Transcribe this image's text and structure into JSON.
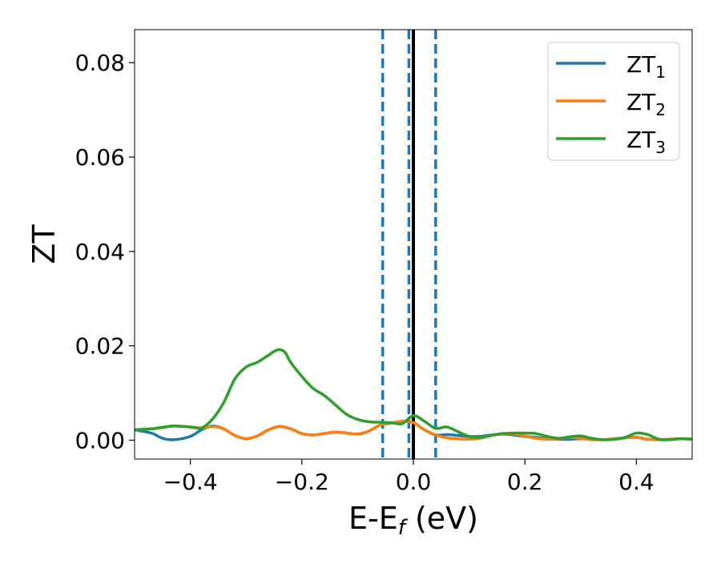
{
  "chart_data": {
    "type": "line",
    "title": "",
    "xlabel_main": "E-E",
    "xlabel_sub": "f",
    "xlabel_tail": " (eV)",
    "ylabel": "ZT",
    "xlim": [
      -0.5,
      0.5
    ],
    "ylim": [
      -0.004,
      0.087
    ],
    "xticks": [
      -0.4,
      -0.2,
      0.0,
      0.2,
      0.4
    ],
    "xtick_labels": [
      "−0.4",
      "−0.2",
      "0.0",
      "0.2",
      "0.4"
    ],
    "yticks": [
      0.0,
      0.02,
      0.04,
      0.06,
      0.08
    ],
    "ytick_labels": [
      "0.00",
      "0.02",
      "0.04",
      "0.06",
      "0.08"
    ],
    "grid": false,
    "legend_position": "top-right",
    "vlines": [
      {
        "x": -0.055,
        "style": "dashed",
        "color": "#1f77b4"
      },
      {
        "x": -0.008,
        "style": "dashed",
        "color": "#1f77b4"
      },
      {
        "x": 0.0,
        "style": "solid",
        "color": "#000000"
      },
      {
        "x": 0.04,
        "style": "dashed",
        "color": "#1f77b4"
      }
    ],
    "series": [
      {
        "name": "ZT",
        "sub": "1",
        "color": "#1f77b4",
        "x": [
          -0.5,
          -0.47,
          -0.45,
          -0.43,
          -0.4,
          -0.38,
          -0.36,
          -0.34,
          -0.32,
          -0.3,
          -0.28,
          -0.26,
          -0.24,
          -0.22,
          -0.2,
          -0.18,
          -0.16,
          -0.14,
          -0.12,
          -0.1,
          -0.08,
          -0.06,
          -0.04,
          -0.02,
          0.0,
          0.02,
          0.04,
          0.06,
          0.08,
          0.1,
          0.12,
          0.14,
          0.16,
          0.18,
          0.2,
          0.22,
          0.24,
          0.26,
          0.28,
          0.3,
          0.32,
          0.34,
          0.36,
          0.38,
          0.4,
          0.42,
          0.44,
          0.46,
          0.48,
          0.5
        ],
        "values": [
          0.0022,
          0.0015,
          0.0004,
          0.0001,
          0.0008,
          0.0022,
          0.003,
          0.0024,
          0.001,
          0.0003,
          0.0009,
          0.0022,
          0.0029,
          0.0024,
          0.0014,
          0.0011,
          0.0014,
          0.0017,
          0.0015,
          0.0013,
          0.0019,
          0.0032,
          0.0036,
          0.004,
          0.0037,
          0.0022,
          0.0011,
          0.0012,
          0.001,
          0.0008,
          0.0008,
          0.0011,
          0.0013,
          0.0011,
          0.0008,
          0.0006,
          0.0003,
          0.0002,
          0.0002,
          0.0003,
          0.0002,
          0.0001,
          0.0002,
          0.0005,
          0.0006,
          0.0002,
          0.0001,
          0.0002,
          0.0003,
          0.0002
        ]
      },
      {
        "name": "ZT",
        "sub": "2",
        "color": "#ff7f0e",
        "x": [
          -0.5,
          -0.47,
          -0.45,
          -0.43,
          -0.4,
          -0.38,
          -0.36,
          -0.34,
          -0.32,
          -0.3,
          -0.28,
          -0.26,
          -0.24,
          -0.22,
          -0.2,
          -0.18,
          -0.16,
          -0.14,
          -0.12,
          -0.1,
          -0.08,
          -0.06,
          -0.04,
          -0.02,
          0.0,
          0.02,
          0.04,
          0.06,
          0.08,
          0.1,
          0.12,
          0.14,
          0.16,
          0.18,
          0.2,
          0.22,
          0.24,
          0.26,
          0.28,
          0.3,
          0.32,
          0.34,
          0.36,
          0.38,
          0.4,
          0.42,
          0.44,
          0.46,
          0.48,
          0.5
        ],
        "values": [
          0.0022,
          0.0024,
          0.0027,
          0.003,
          0.0028,
          0.0026,
          0.0029,
          0.0024,
          0.001,
          0.0003,
          0.0009,
          0.0022,
          0.0029,
          0.0024,
          0.0014,
          0.0011,
          0.0014,
          0.0017,
          0.0015,
          0.0013,
          0.0019,
          0.0032,
          0.0036,
          0.004,
          0.0037,
          0.0022,
          0.0011,
          0.0005,
          0.0003,
          0.0002,
          0.0004,
          0.001,
          0.0014,
          0.0013,
          0.0009,
          0.0004,
          0.0002,
          0.0003,
          0.0006,
          0.0004,
          0.0001,
          0.0001,
          0.0003,
          0.0005,
          0.0006,
          0.0002,
          0.0001,
          0.0002,
          0.0003,
          0.0002
        ]
      },
      {
        "name": "ZT",
        "sub": "3",
        "color": "#2ca02c",
        "x": [
          -0.5,
          -0.47,
          -0.45,
          -0.43,
          -0.4,
          -0.38,
          -0.36,
          -0.34,
          -0.32,
          -0.3,
          -0.28,
          -0.26,
          -0.25,
          -0.24,
          -0.23,
          -0.22,
          -0.2,
          -0.18,
          -0.16,
          -0.14,
          -0.12,
          -0.1,
          -0.08,
          -0.06,
          -0.04,
          -0.02,
          0.0,
          0.02,
          0.04,
          0.06,
          0.08,
          0.1,
          0.12,
          0.14,
          0.16,
          0.18,
          0.2,
          0.22,
          0.24,
          0.26,
          0.28,
          0.3,
          0.32,
          0.34,
          0.36,
          0.38,
          0.4,
          0.42,
          0.44,
          0.46,
          0.48,
          0.5
        ],
        "values": [
          0.0022,
          0.0024,
          0.0027,
          0.003,
          0.0028,
          0.0026,
          0.0045,
          0.008,
          0.013,
          0.0155,
          0.0165,
          0.018,
          0.0188,
          0.0192,
          0.0186,
          0.0165,
          0.0135,
          0.011,
          0.0095,
          0.0075,
          0.0055,
          0.0044,
          0.0039,
          0.0038,
          0.0037,
          0.0035,
          0.0052,
          0.004,
          0.0025,
          0.0028,
          0.0018,
          0.0008,
          0.0006,
          0.001,
          0.0014,
          0.0015,
          0.0015,
          0.0014,
          0.0008,
          0.0004,
          0.0007,
          0.0009,
          0.0004,
          0.0001,
          0.0002,
          0.0006,
          0.0015,
          0.0012,
          0.0002,
          0.0001,
          0.0003,
          0.0002
        ]
      }
    ]
  }
}
